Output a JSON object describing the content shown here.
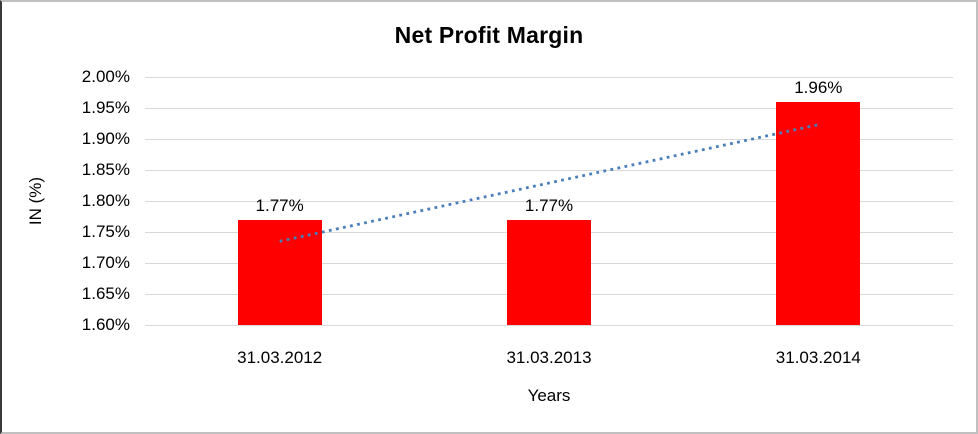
{
  "window": {
    "background": "#ffffff",
    "frame_color": "#c0c0c0",
    "frame_left_color": "#3a3a3a"
  },
  "chart_data": {
    "type": "bar",
    "title": "Net Profit Margin",
    "xlabel": "Years",
    "ylabel": "IN (%)",
    "categories": [
      "31.03.2012",
      "31.03.2013",
      "31.03.2014"
    ],
    "values": [
      1.77,
      1.77,
      1.96
    ],
    "bar_labels": [
      "1.77%",
      "1.77%",
      "1.96%"
    ],
    "bar_color": "#ff0000",
    "ylim": [
      1.6,
      2.0
    ],
    "ytick_step": 0.05,
    "yticks": [
      {
        "label": "2.00%",
        "value": 2.0
      },
      {
        "label": "1.95%",
        "value": 1.95
      },
      {
        "label": "1.90%",
        "value": 1.9
      },
      {
        "label": "1.85%",
        "value": 1.85
      },
      {
        "label": "1.80%",
        "value": 1.8
      },
      {
        "label": "1.75%",
        "value": 1.75
      },
      {
        "label": "1.70%",
        "value": 1.7
      },
      {
        "label": "1.65%",
        "value": 1.65
      },
      {
        "label": "1.60%",
        "value": 1.6
      }
    ],
    "grid": "horizontal",
    "gridline_color": "#d9d9d9",
    "legend": "none",
    "trendline": {
      "type": "linear",
      "style": "dotted",
      "color": "#4a7ebb",
      "start": {
        "category_index": 0,
        "value": 1.735
      },
      "end": {
        "category_index": 2,
        "value": 1.923
      }
    }
  }
}
